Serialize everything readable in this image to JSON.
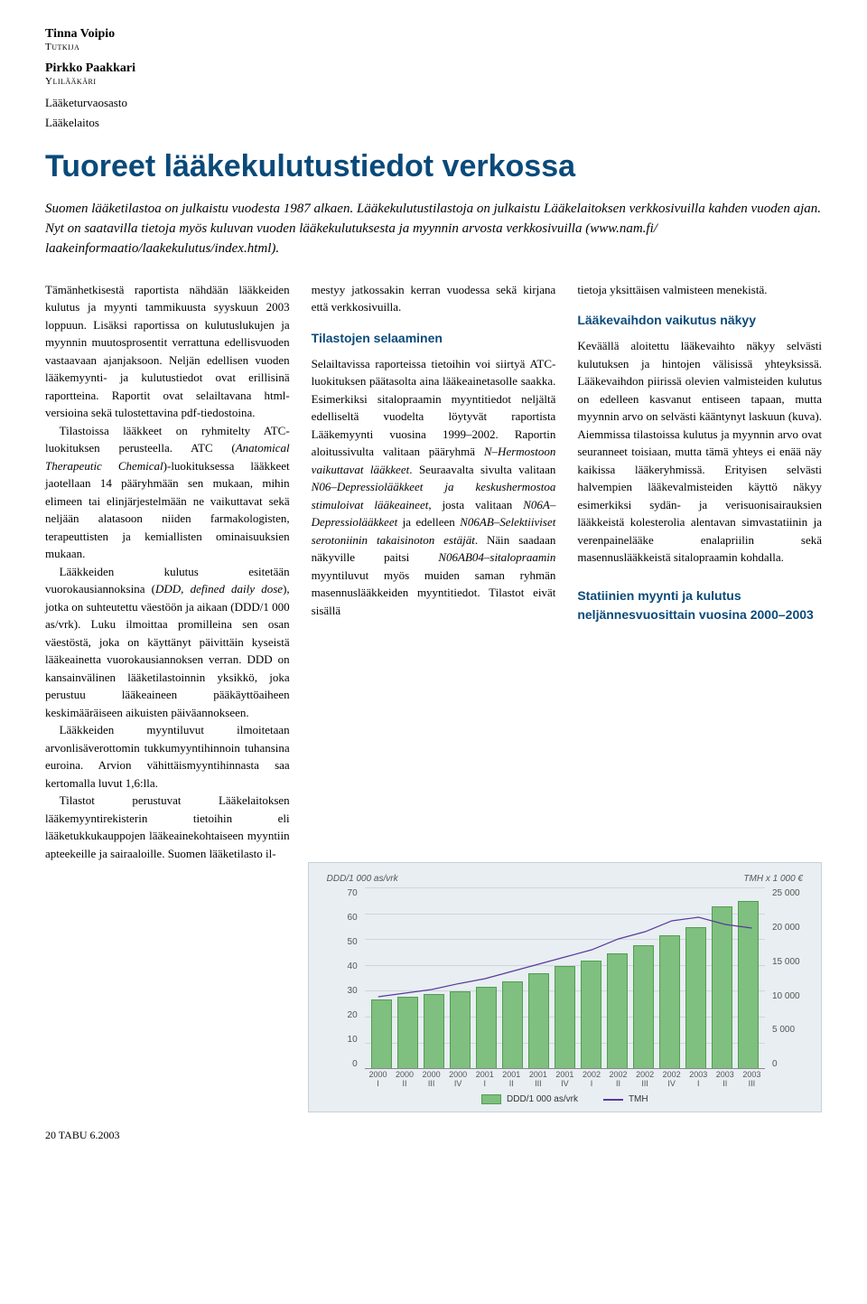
{
  "authors": [
    {
      "name": "Tinna Voipio",
      "role": "Tutkija"
    },
    {
      "name": "Pirkko Paakkari",
      "role": "Ylilääkäri"
    }
  ],
  "department": [
    "Lääketurvaosasto",
    "Lääkelaitos"
  ],
  "title": "Tuoreet lääkekulutustiedot verkossa",
  "intro": "Suomen lääketilastoa on julkaistu vuodesta 1987 alkaen. Lääkekulutustilastoja on julkaistu Lääkelaitoksen verkkosivuilla kahden vuoden ajan. Nyt on saatavilla tietoja myös kuluvan vuoden lääkekulutuksesta ja myynnin arvosta verkkosivuilla (www.nam.fi/ laakeinformaatio/laakekulutus/index.html).",
  "col1": {
    "p1": "Tämänhetkisestä raportista nähdään lääkkeiden kulutus ja myynti tammikuusta syyskuun 2003 loppuun. Lisäksi raportissa on kulutuslukujen ja myynnin muutosprosentit verrattuna edellisvuoden vastaavaan ajanjaksoon. Neljän edellisen vuoden lääkemyynti- ja kulutustiedot ovat erillisinä raportteina. Raportit ovat selailtavana html-versioina sekä tulostettavina pdf-tiedostoina.",
    "p2_a": "Tilastoissa lääkkeet on ryhmitelty ATC-luokituksen perusteella. ATC (",
    "p2_i": "Anatomical Therapeutic Chemical",
    "p2_b": ")-luokituksessa lääkkeet jaotellaan 14 pääryhmään sen mukaan, mihin elimeen tai elinjärjestelmään ne vaikuttavat sekä neljään alatasoon niiden farmakologisten, terapeuttisten ja kemiallisten ominaisuuksien mukaan.",
    "p3_a": "Lääkkeiden kulutus esitetään vuorokausiannoksina (",
    "p3_i": "DDD, defined daily dose",
    "p3_b": "), jotka on suhteutettu väestöön ja aikaan (DDD/1 000 as/vrk). Luku ilmoittaa promilleina sen osan väestöstä, joka on käyttänyt päivittäin kyseistä lääkeainetta vuorokausiannoksen verran. DDD on kansainvälinen lääketilastoinnin yksikkö, joka perustuu lääkeaineen pääkäyttöaiheen keskimääräiseen aikuisten päiväannokseen.",
    "p4": "Lääkkeiden myyntiluvut ilmoitetaan arvonlisäverottomin tukkumyyntihinnoin tuhansina euroina. Arvion vähittäismyyntihinnasta saa kertomalla luvut 1,6:lla.",
    "p5": "Tilastot perustuvat Lääkelaitoksen lääkemyyntirekisterin tietoihin eli lääketukkukauppojen lääkeainekohtaiseen myyntiin apteekeille ja sairaaloille. Suomen lääketilasto il-"
  },
  "col2": {
    "p1": "mestyy jatkossakin kerran vuodessa sekä kirjana että verkkosivuilla.",
    "h1": "Tilastojen selaaminen",
    "p2_a": "Selailtavissa raporteissa tietoihin voi siirtyä ATC-luokituksen päätasolta aina lääkeainetasolle saakka. Esimerkiksi sitalopraamin myyntitiedot neljältä edelliseltä vuodelta löytyvät raportista Lääkemyynti vuosina 1999–2002. Raportin aloitussivulta valitaan pääryhmä ",
    "p2_i1": "N–Hermostoon vaikuttavat lääkkeet",
    "p2_b": ". Seuraavalta sivulta valitaan ",
    "p2_i2": "N06–Depressiolääkkeet ja keskushermostoa stimuloivat lääkeaineet",
    "p2_c": ", josta valitaan ",
    "p2_i3": "N06A–Depressiolääkkeet",
    "p2_d": " ja edelleen ",
    "p2_i4": "N06AB–Selektiiviset serotoniinin takaisinoton estäjät",
    "p2_e": ". Näin saadaan näkyville paitsi ",
    "p2_i5": "N06AB04–sitalopraamin",
    "p2_f": " myyntiluvut myös muiden saman ryhmän masennuslääkkeiden myyntitiedot. Tilastot eivät sisällä"
  },
  "col3": {
    "p1": "tietoja yksittäisen valmisteen menekistä.",
    "h1": "Lääkevaihdon vaikutus näkyy",
    "p2": "Keväällä aloitettu lääkevaihto näkyy selvästi kulutuksen ja hintojen välisissä yhteyksissä. Lääkevaihdon piirissä olevien valmisteiden kulutus on edelleen kasvanut entiseen tapaan, mutta myynnin arvo on selvästi kääntynyt laskuun (kuva). Aiemmissa tilastoissa kulutus ja myynnin arvo ovat seuranneet toisiaan, mutta tämä yhteys ei enää näy kaikissa lääkeryhmissä. Erityisen selvästi halvempien lääkevalmisteiden käyttö näkyy esimerkiksi sydän- ja verisuonisairauksien lääkkeistä kolesterolia alentavan simvastatiinin ja verenpainelääke enalapriilin sekä masennuslääkkeistä sitalopraamin kohdalla."
  },
  "chart": {
    "title": "Statiinien myynti ja kulutus neljännesvuosittain vuosina 2000–2003",
    "type": "combo-bar-line",
    "y_left": {
      "label": "DDD/1 000 as/vrk",
      "min": 0,
      "max": 70,
      "ticks": [
        0,
        10,
        20,
        30,
        40,
        50,
        60,
        70
      ]
    },
    "y_right": {
      "label": "TMH x 1 000 €",
      "min": 0,
      "max": 25000,
      "ticks": [
        0,
        5000,
        10000,
        15000,
        20000,
        25000
      ]
    },
    "x_labels": [
      {
        "y": "2000",
        "q": "I"
      },
      {
        "y": "2000",
        "q": "II"
      },
      {
        "y": "2000",
        "q": "III"
      },
      {
        "y": "2000",
        "q": "IV"
      },
      {
        "y": "2001",
        "q": "I"
      },
      {
        "y": "2001",
        "q": "II"
      },
      {
        "y": "2001",
        "q": "III"
      },
      {
        "y": "2001",
        "q": "IV"
      },
      {
        "y": "2002",
        "q": "I"
      },
      {
        "y": "2002",
        "q": "II"
      },
      {
        "y": "2002",
        "q": "III"
      },
      {
        "y": "2002",
        "q": "IV"
      },
      {
        "y": "2003",
        "q": "I"
      },
      {
        "y": "2003",
        "q": "II"
      },
      {
        "y": "2003",
        "q": "III"
      }
    ],
    "bars_ddd": [
      27,
      28,
      29,
      30,
      32,
      34,
      37,
      40,
      42,
      45,
      48,
      52,
      55,
      63,
      65
    ],
    "line_tmh": [
      10000,
      10500,
      11000,
      11800,
      12500,
      13500,
      14500,
      15500,
      16500,
      18000,
      19000,
      20500,
      21000,
      20000,
      19500
    ],
    "bar_color": "#7fbf7f",
    "bar_border": "#4f9f4f",
    "line_color": "#5a3a9a",
    "grid_color": "#cfd6db",
    "bg_color": "#e8eef2",
    "legend": {
      "bar": "DDD/1 000 as/vrk",
      "line": "TMH"
    }
  },
  "footer": "20 TABU 6.2003"
}
